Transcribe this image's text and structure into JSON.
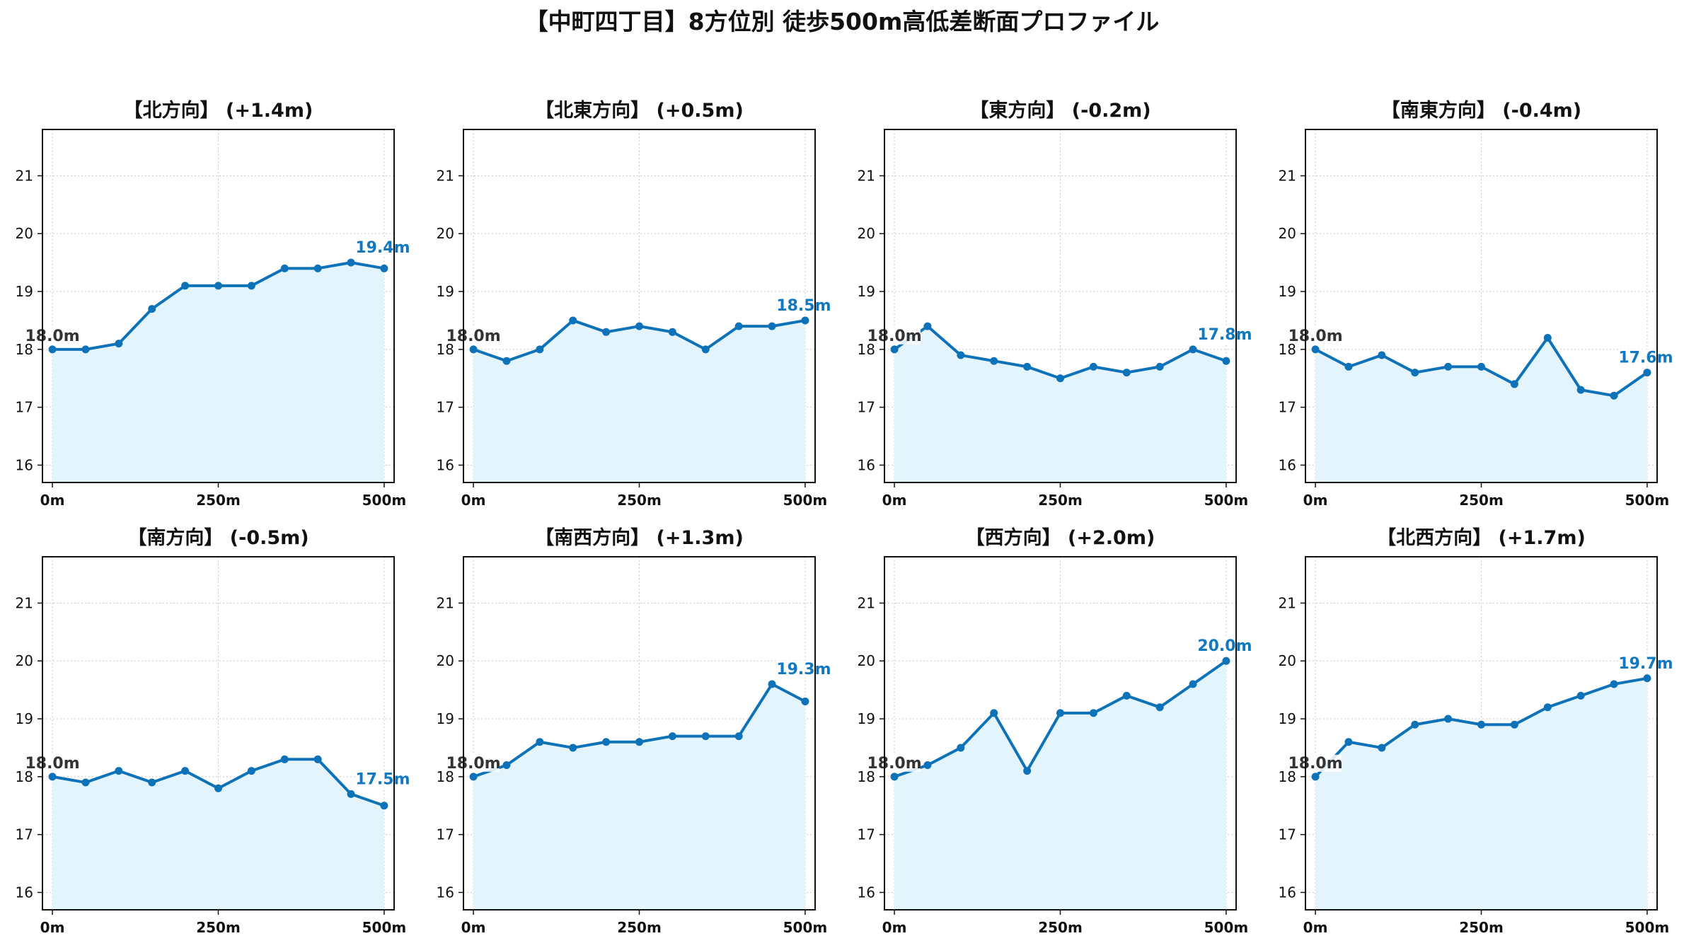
{
  "title": "【中町四丁目】8方位別 徒歩500m高低差断面プロファイル",
  "colors": {
    "line": "#0e72b8",
    "fill": "#e3f4fc",
    "grid": "#c8c8c8",
    "start_label": "#333333",
    "end_label": "#1279c0"
  },
  "chart_data": [
    {
      "type": "area",
      "title": "【北方向】 (+1.4m)",
      "x": [
        0,
        50,
        100,
        150,
        200,
        250,
        300,
        350,
        400,
        450,
        500
      ],
      "values": [
        18.0,
        18.0,
        18.1,
        18.7,
        19.1,
        19.1,
        19.1,
        19.4,
        19.4,
        19.5,
        19.4
      ],
      "start_label": "18.0m",
      "end_label": "19.4m",
      "xticks": [
        0,
        250,
        500
      ],
      "xtick_labels": [
        "0m",
        "250m",
        "500m"
      ],
      "yticks": [
        16,
        17,
        18,
        19,
        20,
        21
      ],
      "xlim": [
        -15,
        515
      ],
      "ylim": [
        15.7,
        21.8
      ],
      "grid": true
    },
    {
      "type": "area",
      "title": "【北東方向】 (+0.5m)",
      "x": [
        0,
        50,
        100,
        150,
        200,
        250,
        300,
        350,
        400,
        450,
        500
      ],
      "values": [
        18.0,
        17.8,
        18.0,
        18.5,
        18.3,
        18.4,
        18.3,
        18.0,
        18.4,
        18.4,
        18.5
      ],
      "start_label": "18.0m",
      "end_label": "18.5m",
      "xticks": [
        0,
        250,
        500
      ],
      "xtick_labels": [
        "0m",
        "250m",
        "500m"
      ],
      "yticks": [
        16,
        17,
        18,
        19,
        20,
        21
      ],
      "xlim": [
        -15,
        515
      ],
      "ylim": [
        15.7,
        21.8
      ],
      "grid": true
    },
    {
      "type": "area",
      "title": "【東方向】 (-0.2m)",
      "x": [
        0,
        50,
        100,
        150,
        200,
        250,
        300,
        350,
        400,
        450,
        500
      ],
      "values": [
        18.0,
        18.4,
        17.9,
        17.8,
        17.7,
        17.5,
        17.7,
        17.6,
        17.7,
        18.0,
        17.8
      ],
      "start_label": "18.0m",
      "end_label": "17.8m",
      "xticks": [
        0,
        250,
        500
      ],
      "xtick_labels": [
        "0m",
        "250m",
        "500m"
      ],
      "yticks": [
        16,
        17,
        18,
        19,
        20,
        21
      ],
      "xlim": [
        -15,
        515
      ],
      "ylim": [
        15.7,
        21.8
      ],
      "grid": true
    },
    {
      "type": "area",
      "title": "【南東方向】 (-0.4m)",
      "x": [
        0,
        50,
        100,
        150,
        200,
        250,
        300,
        350,
        400,
        450,
        500
      ],
      "values": [
        18.0,
        17.7,
        17.9,
        17.6,
        17.7,
        17.7,
        17.4,
        18.2,
        17.3,
        17.2,
        17.6
      ],
      "start_label": "18.0m",
      "end_label": "17.6m",
      "xticks": [
        0,
        250,
        500
      ],
      "xtick_labels": [
        "0m",
        "250m",
        "500m"
      ],
      "yticks": [
        16,
        17,
        18,
        19,
        20,
        21
      ],
      "xlim": [
        -15,
        515
      ],
      "ylim": [
        15.7,
        21.8
      ],
      "grid": true
    },
    {
      "type": "area",
      "title": "【南方向】 (-0.5m)",
      "x": [
        0,
        50,
        100,
        150,
        200,
        250,
        300,
        350,
        400,
        450,
        500
      ],
      "values": [
        18.0,
        17.9,
        18.1,
        17.9,
        18.1,
        17.8,
        18.1,
        18.3,
        18.3,
        17.7,
        17.5
      ],
      "start_label": "18.0m",
      "end_label": "17.5m",
      "xticks": [
        0,
        250,
        500
      ],
      "xtick_labels": [
        "0m",
        "250m",
        "500m"
      ],
      "yticks": [
        16,
        17,
        18,
        19,
        20,
        21
      ],
      "xlim": [
        -15,
        515
      ],
      "ylim": [
        15.7,
        21.8
      ],
      "grid": true
    },
    {
      "type": "area",
      "title": "【南西方向】 (+1.3m)",
      "x": [
        0,
        50,
        100,
        150,
        200,
        250,
        300,
        350,
        400,
        450,
        500
      ],
      "values": [
        18.0,
        18.2,
        18.6,
        18.5,
        18.6,
        18.6,
        18.7,
        18.7,
        18.7,
        19.6,
        19.3
      ],
      "start_label": "18.0m",
      "end_label": "19.3m",
      "xticks": [
        0,
        250,
        500
      ],
      "xtick_labels": [
        "0m",
        "250m",
        "500m"
      ],
      "yticks": [
        16,
        17,
        18,
        19,
        20,
        21
      ],
      "xlim": [
        -15,
        515
      ],
      "ylim": [
        15.7,
        21.8
      ],
      "grid": true
    },
    {
      "type": "area",
      "title": "【西方向】 (+2.0m)",
      "x": [
        0,
        50,
        100,
        150,
        200,
        250,
        300,
        350,
        400,
        450,
        500
      ],
      "values": [
        18.0,
        18.2,
        18.5,
        19.1,
        18.1,
        19.1,
        19.1,
        19.4,
        19.2,
        19.6,
        20.0
      ],
      "start_label": "18.0m",
      "end_label": "20.0m",
      "xticks": [
        0,
        250,
        500
      ],
      "xtick_labels": [
        "0m",
        "250m",
        "500m"
      ],
      "yticks": [
        16,
        17,
        18,
        19,
        20,
        21
      ],
      "xlim": [
        -15,
        515
      ],
      "ylim": [
        15.7,
        21.8
      ],
      "grid": true
    },
    {
      "type": "area",
      "title": "【北西方向】 (+1.7m)",
      "x": [
        0,
        50,
        100,
        150,
        200,
        250,
        300,
        350,
        400,
        450,
        500
      ],
      "values": [
        18.0,
        18.6,
        18.5,
        18.9,
        19.0,
        18.9,
        18.9,
        19.2,
        19.4,
        19.6,
        19.7
      ],
      "start_label": "18.0m",
      "end_label": "19.7m",
      "xticks": [
        0,
        250,
        500
      ],
      "xtick_labels": [
        "0m",
        "250m",
        "500m"
      ],
      "yticks": [
        16,
        17,
        18,
        19,
        20,
        21
      ],
      "xlim": [
        -15,
        515
      ],
      "ylim": [
        15.7,
        21.8
      ],
      "grid": true
    }
  ]
}
